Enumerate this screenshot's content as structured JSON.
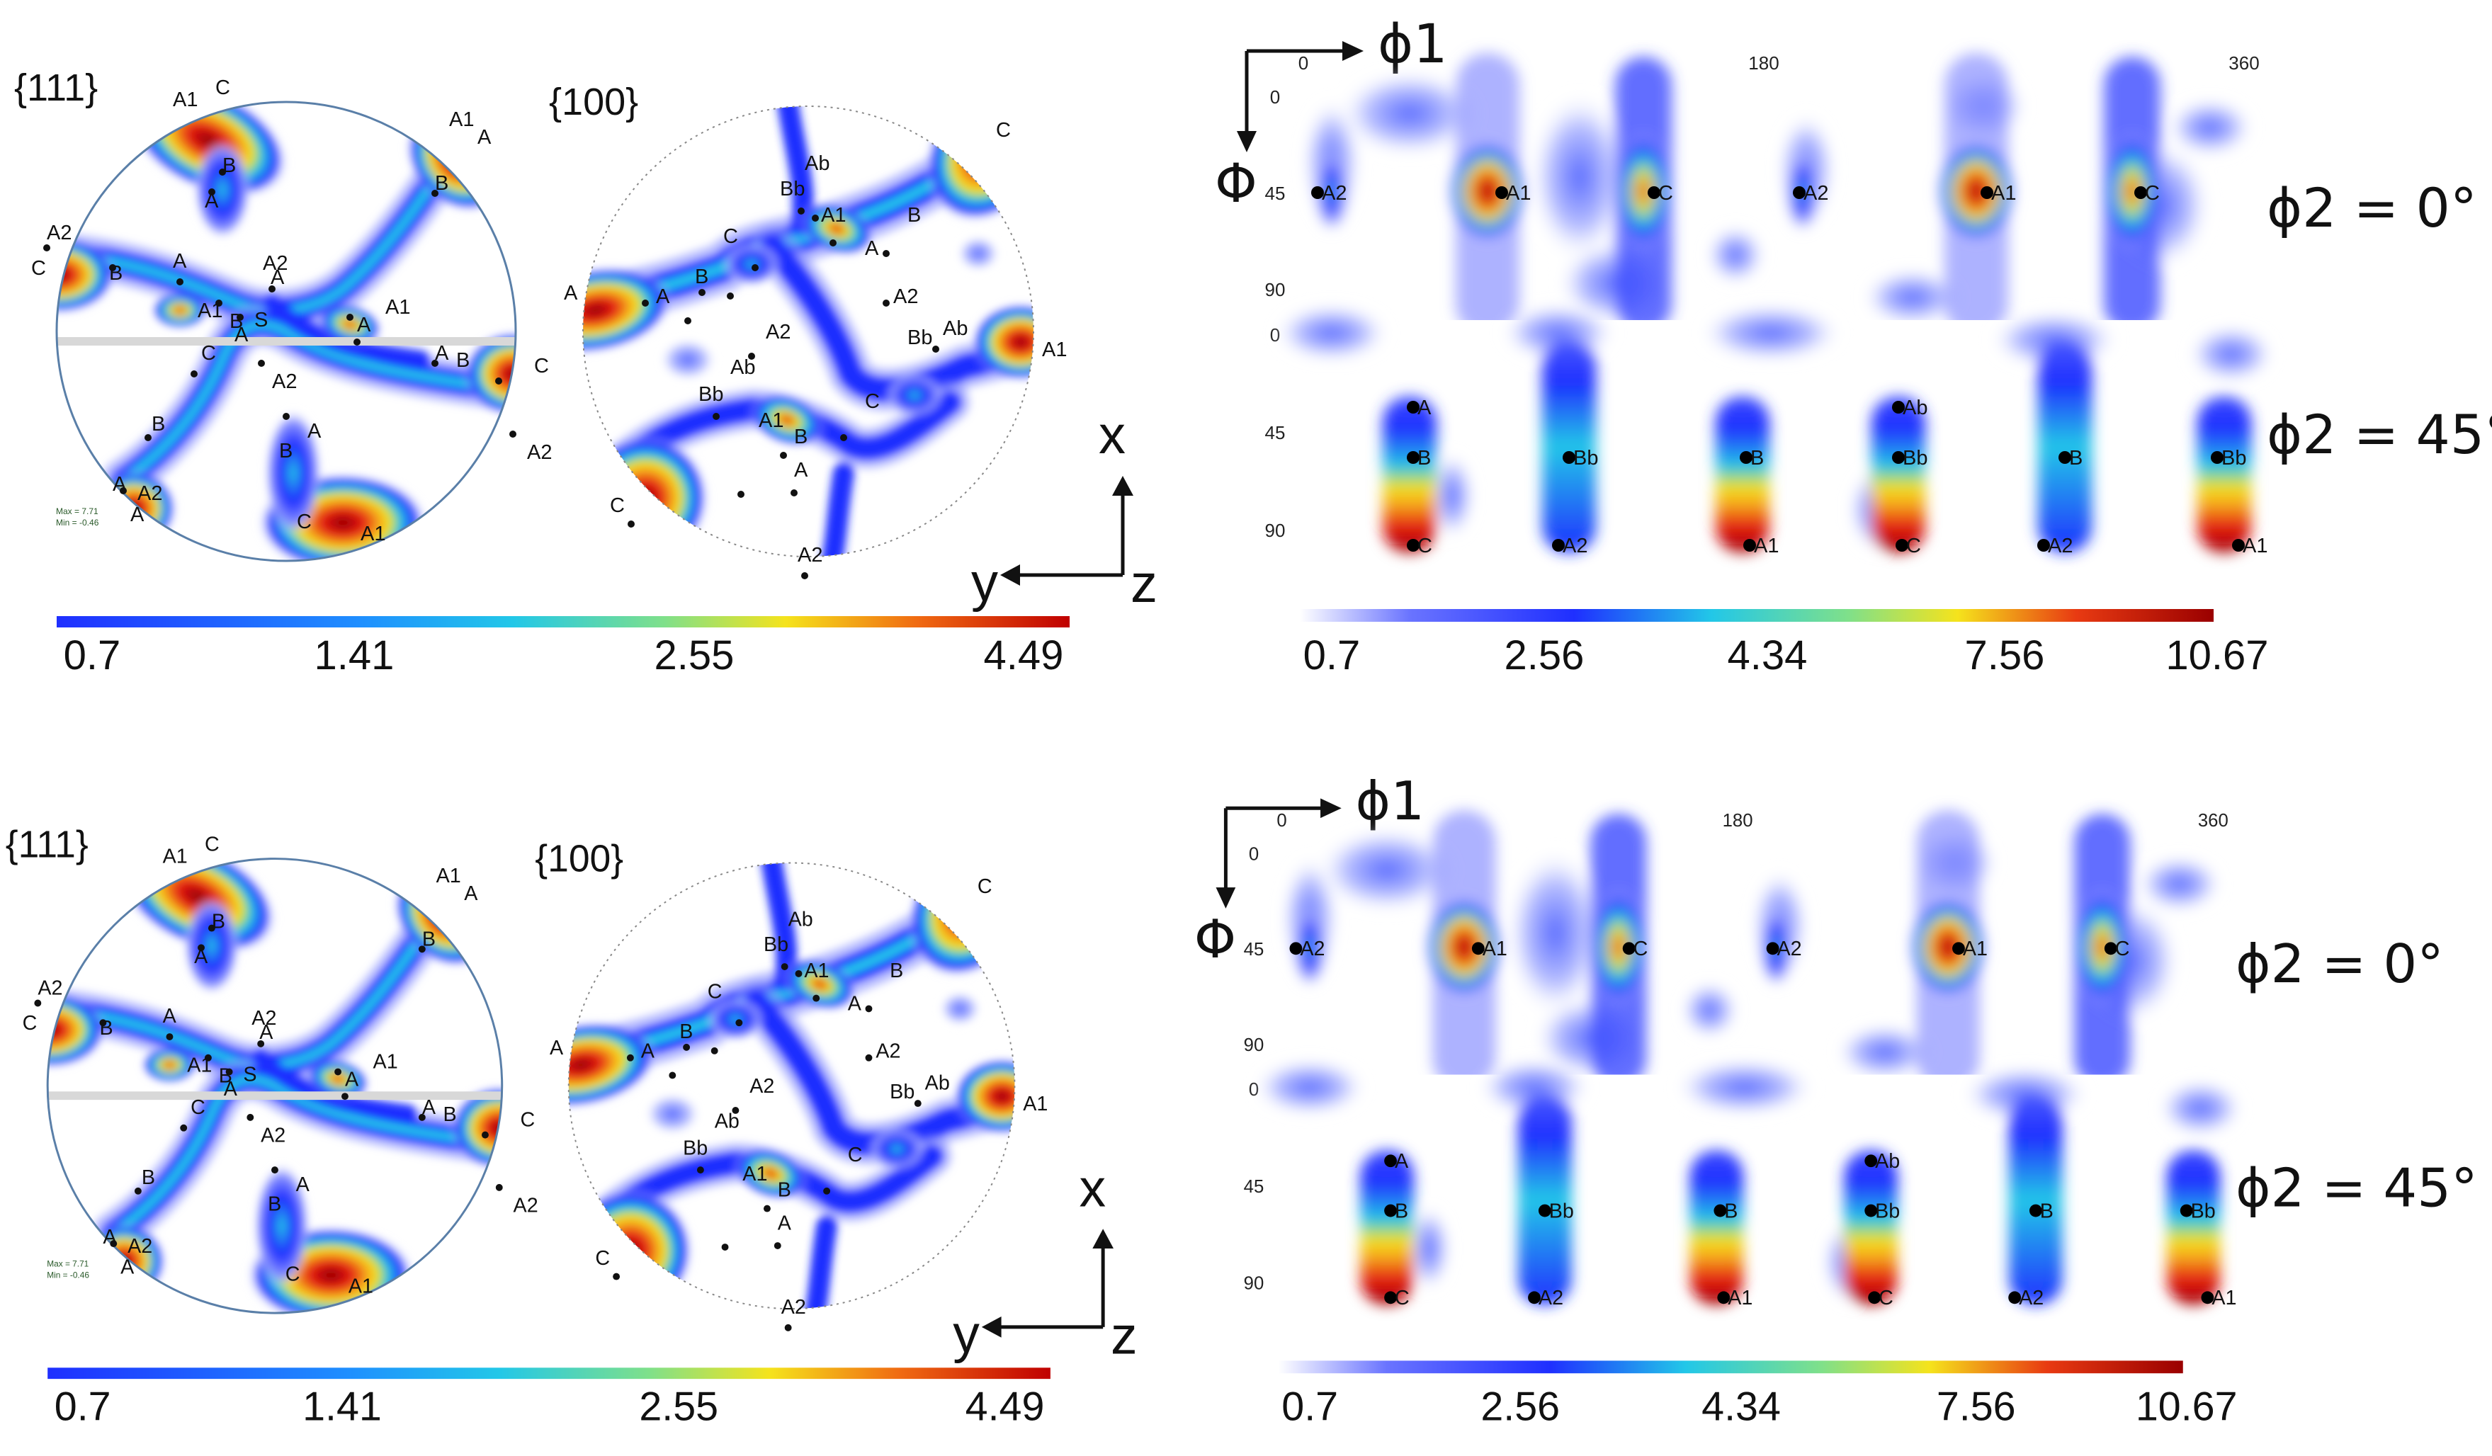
{
  "colors": {
    "low": "#ffffff",
    "blue": "#1f2fff",
    "cyan": "#22c7e8",
    "yellow": "#f5e31c",
    "red": "#e21212",
    "darkred": "#8a0000",
    "circle": "#5a7fa8"
  },
  "panels": [
    {
      "pole_figures": {
        "labels": [
          "{111}",
          "{100}"
        ],
        "max_text": "Max = 7.71",
        "min_text": "Min = -0.46",
        "colorbar_ticks": [
          "0.7",
          "1.41",
          "2.55",
          "4.49"
        ]
      },
      "axes_triad": {
        "x": "x",
        "y": "y",
        "z": "z"
      },
      "odf": {
        "phi1_label": "ϕ1",
        "Phi_label": "Φ",
        "phi1_ticks": [
          "0",
          "180",
          "360"
        ],
        "Phi_ticks": [
          "0",
          "45",
          "90"
        ],
        "sections": [
          {
            "label": "ϕ2 = 0°",
            "markers": [
              "A2",
              "A1",
              "C",
              "A2",
              "A1",
              "C"
            ]
          },
          {
            "label": "ϕ2 = 45°",
            "markers": [
              "A",
              "B",
              "C",
              "Bb",
              "A2",
              "B",
              "A1",
              "Ab",
              "Bb",
              "C",
              "B",
              "A2",
              "Bb",
              "A1"
            ]
          }
        ],
        "colorbar_ticks": [
          "0.7",
          "2.56",
          "4.34",
          "7.56",
          "10.67"
        ]
      }
    },
    {
      "pole_figures": {
        "labels": [
          "{111}",
          "{100}"
        ],
        "max_text": "Max = 7.71",
        "min_text": "Min = -0.46",
        "colorbar_ticks": [
          "0.7",
          "1.41",
          "2.55",
          "4.49"
        ]
      },
      "axes_triad": {
        "x": "x",
        "y": "y",
        "z": "z"
      },
      "odf": {
        "phi1_label": "ϕ1",
        "Phi_label": "Φ",
        "phi1_ticks": [
          "0",
          "180",
          "360"
        ],
        "Phi_ticks": [
          "0",
          "45",
          "90"
        ],
        "sections": [
          {
            "label": "ϕ2 = 0°",
            "markers": [
              "A2",
              "A1",
              "C",
              "A2",
              "A1",
              "C"
            ]
          },
          {
            "label": "ϕ2 = 45°",
            "markers": [
              "A",
              "B",
              "C",
              "Bb",
              "A2",
              "B",
              "A1",
              "Ab",
              "Bb",
              "C",
              "B",
              "A2",
              "Bb",
              "A1"
            ]
          }
        ],
        "colorbar_ticks": [
          "0.7",
          "2.56",
          "4.34",
          "7.56",
          "10.67"
        ]
      }
    }
  ]
}
